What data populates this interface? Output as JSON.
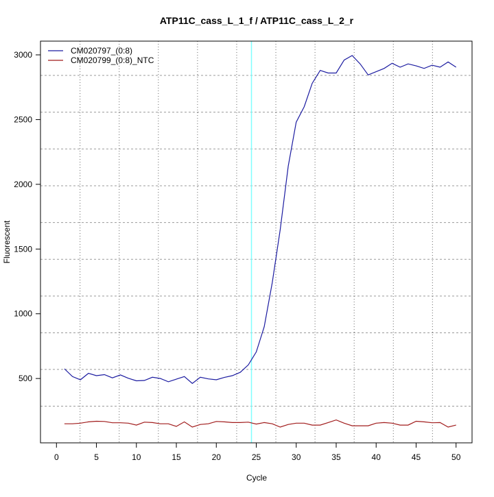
{
  "chart_data": {
    "type": "line",
    "title": "ATP11C_cass_L_1_f / ATP11C_cass_L_2_r",
    "xlabel": "Cycle",
    "ylabel": "Fluorescent",
    "xlim": [
      -2,
      52
    ],
    "ylim": [
      3,
      3106
    ],
    "xticks": [
      0,
      5,
      10,
      15,
      20,
      25,
      30,
      35,
      40,
      45,
      50
    ],
    "yticks": [
      500,
      1000,
      1500,
      2000,
      2500,
      3000
    ],
    "grid": true,
    "grid_x": [
      2.95,
      7.85,
      12.75,
      17.65,
      22.55,
      27.45,
      32.35,
      37.25,
      42.15,
      47.05
    ],
    "grid_y": [
      286,
      570,
      853,
      1137,
      1421,
      1705,
      1989,
      2273,
      2557,
      2841
    ],
    "threshold_cycle": 24.4,
    "threshold_color": "#7fffff",
    "legend_position": "top-left",
    "x": [
      1,
      2,
      3,
      4,
      5,
      6,
      7,
      8,
      9,
      10,
      11,
      12,
      13,
      14,
      15,
      16,
      17,
      18,
      19,
      20,
      21,
      22,
      23,
      24,
      25,
      26,
      27,
      28,
      29,
      30,
      31,
      32,
      33,
      34,
      35,
      36,
      37,
      38,
      39,
      40,
      41,
      42,
      43,
      44,
      45,
      46,
      47,
      48,
      49,
      50
    ],
    "series": [
      {
        "name": "CM020797_(0:8)",
        "color": "#1a1aa0",
        "values": [
          575,
          515,
          490,
          540,
          522,
          530,
          505,
          528,
          502,
          482,
          485,
          510,
          500,
          475,
          495,
          515,
          462,
          510,
          497,
          490,
          508,
          522,
          548,
          605,
          705,
          900,
          1240,
          1650,
          2140,
          2480,
          2600,
          2780,
          2880,
          2860,
          2860,
          2960,
          2995,
          2930,
          2845,
          2870,
          2895,
          2935,
          2905,
          2930,
          2915,
          2895,
          2920,
          2905,
          2945,
          2905
        ]
      },
      {
        "name": "CM020799_(0:8)_NTC",
        "color": "#a01a1a",
        "values": [
          150,
          150,
          155,
          165,
          170,
          168,
          158,
          158,
          155,
          140,
          163,
          160,
          150,
          150,
          130,
          165,
          125,
          145,
          150,
          168,
          165,
          160,
          160,
          163,
          148,
          160,
          150,
          125,
          145,
          155,
          155,
          140,
          140,
          160,
          180,
          155,
          135,
          135,
          135,
          155,
          160,
          155,
          140,
          140,
          170,
          165,
          158,
          160,
          125,
          140
        ]
      }
    ]
  }
}
